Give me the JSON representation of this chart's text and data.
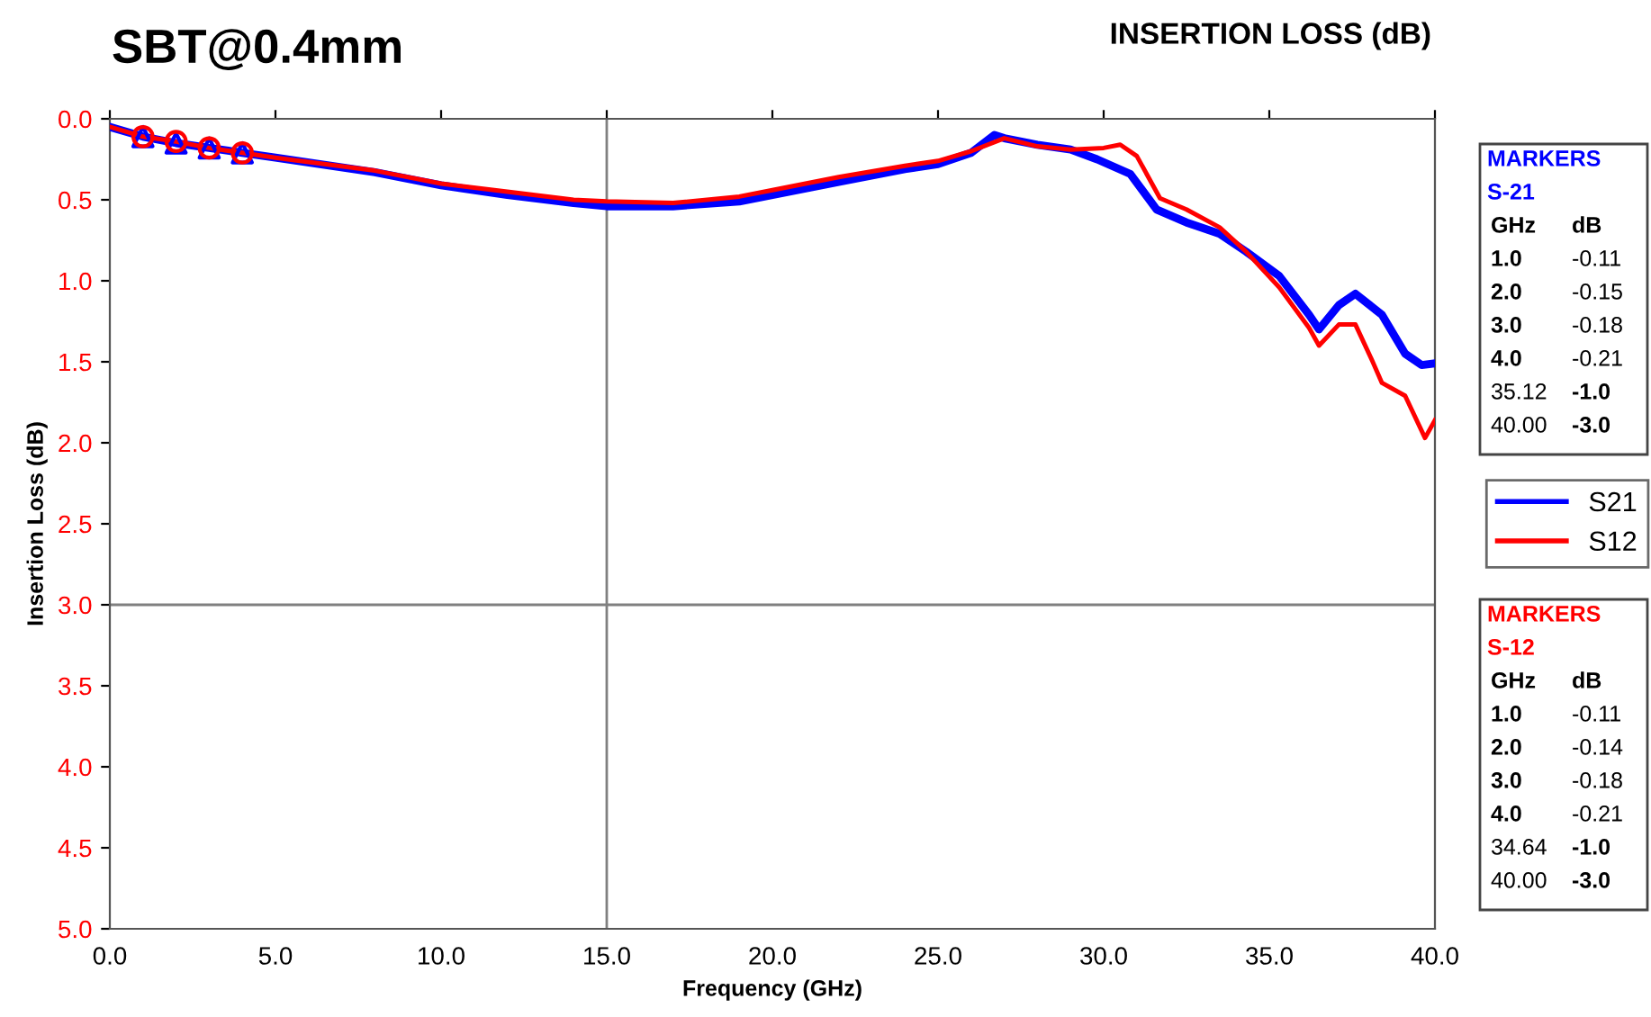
{
  "chart_data": {
    "type": "line",
    "title": "SBT@0.4mm",
    "subtitle": "INSERTION LOSS (dB)",
    "xlabel": "Frequency (GHz)",
    "ylabel": "Insertion Loss (dB)",
    "xlim": [
      0,
      40
    ],
    "xticks": [
      {
        "value": 0,
        "label": "0.0"
      },
      {
        "value": 5,
        "label": "5.0"
      },
      {
        "value": 10,
        "label": "10.0"
      },
      {
        "value": 15,
        "label": "15.0"
      },
      {
        "value": 20,
        "label": "20.0"
      },
      {
        "value": 25,
        "label": "25.0"
      },
      {
        "value": 30,
        "label": "30.0"
      },
      {
        "value": 35,
        "label": "35.0"
      },
      {
        "value": 40,
        "label": "40.0"
      }
    ],
    "ylim": [
      5,
      0
    ],
    "yticks": [
      {
        "value": 0,
        "label": "0.0"
      },
      {
        "value": 0.5,
        "label": "0.5"
      },
      {
        "value": 1,
        "label": "1.0"
      },
      {
        "value": 1.5,
        "label": "1.5"
      },
      {
        "value": 2,
        "label": "2.0"
      },
      {
        "value": 2.5,
        "label": "2.5"
      },
      {
        "value": 3,
        "label": "3.0"
      },
      {
        "value": 3.5,
        "label": "3.5"
      },
      {
        "value": 4,
        "label": "4.0"
      },
      {
        "value": 4.5,
        "label": "4.5"
      },
      {
        "value": 5,
        "label": "5.0"
      }
    ],
    "legend": "right",
    "marker": "none",
    "line_style": "solid",
    "ref_lines": [
      {
        "axis": "x",
        "value": 15,
        "color": "#808080"
      },
      {
        "axis": "y",
        "value": 3,
        "color": "#808080"
      }
    ],
    "series": [
      {
        "name": "S21",
        "color": "#0000ff",
        "x": [
          0,
          1,
          2,
          3,
          4,
          5,
          8,
          10,
          12,
          14,
          15,
          17,
          19,
          20,
          22,
          24,
          25,
          26,
          26.7,
          27,
          28,
          29,
          29.8,
          30.8,
          31.6,
          32.5,
          33.5,
          34.3,
          35.3,
          36.2,
          36.5,
          37.1,
          37.6,
          38.4,
          39.1,
          39.6,
          40
        ],
        "values": [
          0.05,
          0.11,
          0.15,
          0.18,
          0.21,
          0.24,
          0.33,
          0.41,
          0.47,
          0.52,
          0.54,
          0.54,
          0.51,
          0.47,
          0.39,
          0.31,
          0.28,
          0.21,
          0.1,
          0.12,
          0.16,
          0.19,
          0.25,
          0.34,
          0.56,
          0.64,
          0.71,
          0.82,
          0.97,
          1.21,
          1.3,
          1.15,
          1.08,
          1.21,
          1.45,
          1.52,
          1.51
        ]
      },
      {
        "name": "S12",
        "color": "#ff0000",
        "x": [
          0,
          1,
          2,
          3,
          4,
          5,
          8,
          10,
          12,
          14,
          15,
          17,
          19,
          20,
          22,
          24,
          25,
          26,
          27,
          28,
          29,
          30,
          30.5,
          31,
          31.7,
          32.5,
          33.5,
          34.3,
          35.3,
          36.2,
          36.5,
          37.1,
          37.6,
          38.1,
          38.4,
          39.1,
          39.7,
          40
        ],
        "values": [
          0.05,
          0.11,
          0.14,
          0.18,
          0.21,
          0.24,
          0.32,
          0.4,
          0.45,
          0.5,
          0.51,
          0.52,
          0.48,
          0.44,
          0.36,
          0.29,
          0.26,
          0.2,
          0.12,
          0.17,
          0.19,
          0.18,
          0.16,
          0.23,
          0.49,
          0.56,
          0.67,
          0.82,
          1.04,
          1.29,
          1.4,
          1.27,
          1.27,
          1.49,
          1.63,
          1.71,
          1.97,
          1.86
        ]
      },
      {
        "type": "scatter",
        "marker": "triangle",
        "color": "#0000ff",
        "x": [
          1,
          2,
          3,
          4
        ],
        "values": [
          0.11,
          0.15,
          0.18,
          0.21
        ]
      },
      {
        "type": "scatter",
        "marker": "circle",
        "color": "#ff0000",
        "x": [
          1,
          2,
          3,
          4
        ],
        "values": [
          0.11,
          0.14,
          0.18,
          0.21
        ]
      }
    ],
    "annotations": [
      "MARKERS",
      "S-21",
      "GHz  dB",
      "1.0  -0.11",
      "2.0  -0.15",
      "3.0  -0.18",
      "4.0  -0.21",
      "35.12  -1.0",
      "40.00  -3.0",
      "MARKERS",
      "S-12",
      "GHz  dB",
      "1.0  -0.11",
      "2.0  -0.14",
      "3.0  -0.18",
      "4.0  -0.21",
      "34.64  -1.0",
      "40.00  -3.0"
    ]
  }
}
